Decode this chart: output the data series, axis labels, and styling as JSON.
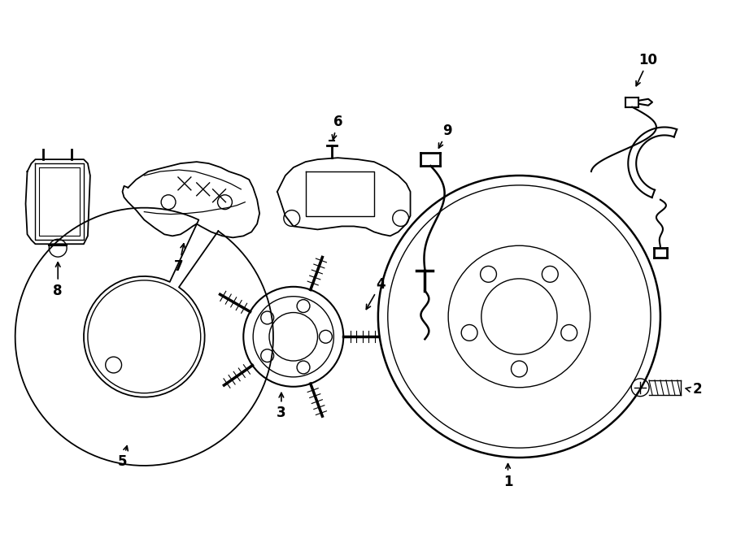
{
  "bg_color": "#ffffff",
  "line_color": "#000000",
  "fig_width": 9.0,
  "fig_height": 6.62,
  "dpi": 100,
  "label_fontsize": 12,
  "label_fontweight": "bold"
}
